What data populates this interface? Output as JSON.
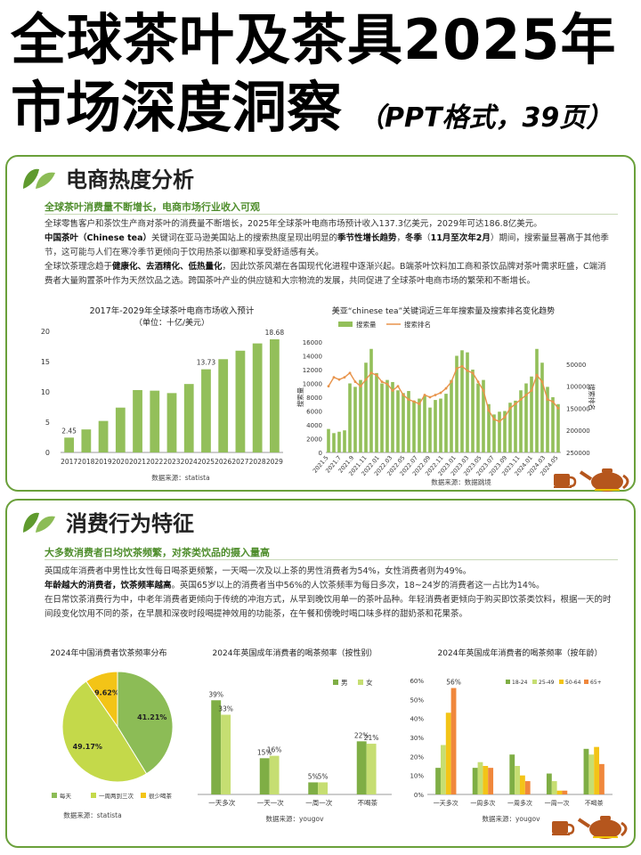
{
  "header": {
    "title_line1": "全球茶叶及茶具2025年",
    "title_line2": "市场深度洞察",
    "subtitle": "（PPT格式，39页）"
  },
  "colors": {
    "accent": "#6aa03a",
    "bar": "#93bf5a",
    "line": "#e8934a",
    "yellow": "#f3c417",
    "orange": "#f0873c"
  },
  "section1": {
    "title": "电商热度分析",
    "subheading": "全球茶叶消费量不断增长，电商市场行业收入可观",
    "p1": "全球零售客户和茶饮生产商对茶叶的消费量不断增长，2025年全球茶叶电商市场预计收入137.3亿美元，2029年可达186.8亿美元。",
    "p2_a": "中国茶叶（Chinese tea）",
    "p2_b": "关键词在亚马逊美国站上的搜索热度呈现出明显的",
    "p2_c": "季节性增长趋势",
    "p2_d": "，",
    "p2_e": "冬季",
    "p2_f": "（",
    "p2_g": "11月至次年2月",
    "p2_h": "）期间，搜索量显著高于其他季节，这可能与人们在寒冷季节更倾向于饮用热茶以御寒和享受舒适感有关。",
    "p3_a": "全球饮茶理念趋于",
    "p3_b": "健康化、去酒精化、低热量化",
    "p3_c": "，因此饮茶风潮在各国现代化进程中逐渐兴起。B端茶叶饮料加工商和茶饮品牌对茶叶需求旺盛，C端消费者大量购置茶叶作为天然饮品之选。跨国茶叶产业的供应链和大宗物流的发展，共同促进了全球茶叶电商市场的繁荣和不断增长。"
  },
  "section2": {
    "title": "消费行为特征",
    "subheading": "大多数消费者日均饮茶频繁，对茶类饮品的摄入量高",
    "p1": "英国成年消费者中男性比女性每日喝茶更频繁，一天喝一次及以上茶的男性消费者为54%，女性消费者则为49%。",
    "p2_a": "年龄越大的消费者，饮茶频率越高",
    "p2_b": "。英国65岁以上的消费者当中56%的人饮茶频率为每日多次，18~24岁的消费者这一占比为14%。",
    "p3": "在日常饮茶消费行为中，中老年消费者更倾向于传统的冲泡方式，从早到晚饮用单一的茶叶品种。年轻消费者更倾向于购买即饮茶类饮料，根据一天的时间段变化饮用不同的茶，在早晨和深夜时段喝提神效用的功能茶，在午餐和傍晚时喝口味多样的甜奶茶和花果茶。"
  },
  "chart_data": [
    {
      "type": "bar",
      "title": "2017年-2029年全球茶叶电商市场收入预计",
      "subtitle": "（单位：十亿/美元）",
      "categories": [
        "2017",
        "2018",
        "2019",
        "2020",
        "2021",
        "2022",
        "2023",
        "2024",
        "2025",
        "2026",
        "2027",
        "2028",
        "2029"
      ],
      "values": [
        2.45,
        3.8,
        5.2,
        7.4,
        10.3,
        10.2,
        9.8,
        11.3,
        13.73,
        15.4,
        16.8,
        18.0,
        18.68
      ],
      "data_labels": {
        "0": "2.45",
        "8": "13.73",
        "12": "18.68"
      },
      "ylim": [
        0,
        20
      ],
      "yticks": [
        "0",
        "5",
        "10",
        "15",
        "20"
      ],
      "source": "数据来源：statista"
    },
    {
      "type": "bar",
      "title": "美亚“chinese tea”关键词近三年年搜索量及搜索排名变化趋势",
      "legend": [
        "搜索量",
        "搜索排名"
      ],
      "ylabel_left": "搜索量",
      "ylabel_right": "搜索排名",
      "x_tick_labels": [
        "2021.5",
        "2021.7",
        "2021.9",
        "2021.11",
        "2022.01",
        "2022.03",
        "2022.05",
        "2022.07",
        "2022.09",
        "2022.11",
        "2023.01",
        "2023.03",
        "2023.05",
        "2023.07",
        "2023.09",
        "2023.11",
        "2024.01",
        "2024.03",
        "2024.05"
      ],
      "y_left_ticks": [
        "0",
        "2000",
        "4000",
        "6000",
        "8000",
        "10000",
        "12000",
        "14000",
        "16000"
      ],
      "y_right_ticks": [
        "250000",
        "200000",
        "150000",
        "100000",
        "50000"
      ],
      "ylim_left": [
        0,
        16000
      ],
      "ylim_right": [
        0,
        250000
      ],
      "bars": [
        3400,
        2800,
        3000,
        3200,
        10000,
        9500,
        10500,
        13000,
        15000,
        11500,
        10000,
        10500,
        10200,
        9000,
        8600,
        8900,
        7500,
        7800,
        8200,
        6500,
        7600,
        7800,
        8500,
        10500,
        14000,
        14800,
        14500,
        12000,
        10000,
        10500,
        7000,
        5500,
        5900,
        6000,
        7200,
        7500,
        9000,
        10000,
        11000,
        15000,
        13000,
        9500,
        8000,
        7000
      ],
      "ranks": [
        100000,
        80000,
        85000,
        80000,
        70000,
        90000,
        100000,
        85000,
        70000,
        75000,
        90000,
        95000,
        110000,
        100000,
        120000,
        130000,
        135000,
        140000,
        120000,
        125000,
        120000,
        115000,
        105000,
        90000,
        60000,
        55000,
        65000,
        70000,
        90000,
        110000,
        155000,
        175000,
        180000,
        170000,
        150000,
        140000,
        130000,
        120000,
        110000,
        75000,
        90000,
        130000,
        135000,
        150000
      ],
      "source": "数据来源：数据跳境"
    },
    {
      "type": "pie",
      "title": "2024年中国消费者饮茶频率分布",
      "labels": [
        "每天",
        "一周两到三次",
        "很少喝茶"
      ],
      "values": [
        41.21,
        49.17,
        9.62
      ],
      "value_labels": [
        "41.21%",
        "49.17%",
        "9.62%"
      ],
      "colors": [
        "#8cbc56",
        "#c4d94a",
        "#f3c417"
      ],
      "source": "数据来源：statista"
    },
    {
      "type": "bar",
      "title": "2024年英国成年消费者的喝茶频率（按性别）",
      "categories": [
        "一天多次",
        "一天一次",
        "一周一次",
        "不喝茶"
      ],
      "series": [
        {
          "name": "男",
          "values": [
            39,
            15,
            5,
            22
          ],
          "labels": [
            "39%",
            "15%",
            "5%",
            "22%"
          ]
        },
        {
          "name": "女",
          "values": [
            33,
            16,
            5,
            21
          ],
          "labels": [
            "33%",
            "16%",
            "5%",
            "21%"
          ]
        }
      ],
      "ylim": [
        0,
        45
      ],
      "source": "数据来源：yougov"
    },
    {
      "type": "bar",
      "title": "2024年英国成年消费者的喝茶频率（按年龄）",
      "categories": [
        "一天多次",
        "一周多次",
        "一周多次",
        "一周一次",
        "不喝茶"
      ],
      "series": [
        {
          "name": "18-24",
          "values": [
            14,
            14,
            21,
            11,
            24
          ]
        },
        {
          "name": "25-49",
          "values": [
            26,
            17,
            15,
            7,
            21
          ]
        },
        {
          "name": "50-64",
          "values": [
            43,
            15,
            10,
            2,
            25
          ]
        },
        {
          "name": "65+",
          "values": [
            56,
            14,
            7,
            2,
            16
          ]
        }
      ],
      "peak_label": "56%",
      "yticks": [
        "0%",
        "10%",
        "20%",
        "30%",
        "40%",
        "50%",
        "60%"
      ],
      "ylim": [
        0,
        60
      ],
      "source": "数据来源：yougov"
    }
  ]
}
